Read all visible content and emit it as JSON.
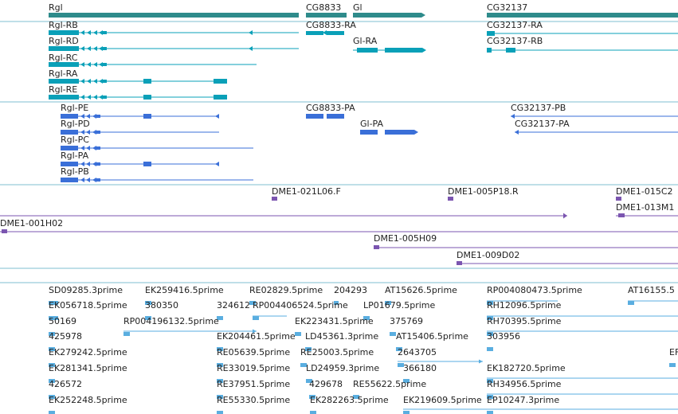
{
  "colors": {
    "gene": "#2e8b8b",
    "transcript": "#0aa0b8",
    "protein": "#3a6fd8",
    "clone": "#7b55b0",
    "est": "#5aaee0",
    "divider": "#7fbfd0"
  },
  "tracks": {
    "genes": [
      {
        "label": "Rgl"
      },
      {
        "label": "CG8833"
      },
      {
        "label": "Gl"
      },
      {
        "label": "CG32137"
      }
    ],
    "transcripts": [
      {
        "label": "Rgl-RB"
      },
      {
        "label": "Rgl-RD"
      },
      {
        "label": "Rgl-RC"
      },
      {
        "label": "Rgl-RA"
      },
      {
        "label": "Rgl-RE"
      },
      {
        "label": "CG8833-RA"
      },
      {
        "label": "Gl-RA"
      },
      {
        "label": "CG32137-RA"
      },
      {
        "label": "CG32137-RB"
      }
    ],
    "proteins": [
      {
        "label": "Rgl-PE"
      },
      {
        "label": "Rgl-PD"
      },
      {
        "label": "Rgl-PC"
      },
      {
        "label": "Rgl-PA"
      },
      {
        "label": "Rgl-PB"
      },
      {
        "label": "CG8833-PA"
      },
      {
        "label": "Gl-PA"
      },
      {
        "label": "CG32137-PB"
      },
      {
        "label": "CG32137-PA"
      }
    ],
    "clones": [
      {
        "label": "DME1-021L06.F"
      },
      {
        "label": "DME1-005P18.R"
      },
      {
        "label": "DME1-015C2"
      },
      {
        "label": "DME1-013M1"
      },
      {
        "label": "DME1-001H02"
      },
      {
        "label": "DME1-005H09"
      },
      {
        "label": "DME1-009D02"
      }
    ],
    "ests": [
      {
        "label": "SD09285.3prime"
      },
      {
        "label": "EK259416.5prime"
      },
      {
        "label": "RE02829.5prime"
      },
      {
        "label": "204293"
      },
      {
        "label": "AT15626.5prime"
      },
      {
        "label": "RP004080473.5prime"
      },
      {
        "label": "AT16155.5"
      },
      {
        "label": "EK056718.5prime"
      },
      {
        "label": "380350"
      },
      {
        "label": "324612"
      },
      {
        "label": "RP004406524.5prime"
      },
      {
        "label": "LP01679.5prime"
      },
      {
        "label": "RH12096.5prime"
      },
      {
        "label": "50169"
      },
      {
        "label": "RP004196132.5prime"
      },
      {
        "label": "EK223431.5prime"
      },
      {
        "label": "375769"
      },
      {
        "label": "RH70395.5prime"
      },
      {
        "label": "425978"
      },
      {
        "label": "EK204461.5prime"
      },
      {
        "label": "LD45361.3prime"
      },
      {
        "label": "AT15406.5prime"
      },
      {
        "label": "303956"
      },
      {
        "label": "EK279242.5prime"
      },
      {
        "label": "RE05639.5prime"
      },
      {
        "label": "RE25003.5prime"
      },
      {
        "label": "2643705"
      },
      {
        "label": "EF"
      },
      {
        "label": "EK281341.5prime"
      },
      {
        "label": "RE33019.5prime"
      },
      {
        "label": "LD24959.3prime"
      },
      {
        "label": "366180"
      },
      {
        "label": "EK182720.5prime"
      },
      {
        "label": "426572"
      },
      {
        "label": "RE37951.5prime"
      },
      {
        "label": "429678"
      },
      {
        "label": "RE55622.5prime"
      },
      {
        "label": "RH34956.5prime"
      },
      {
        "label": "EK252248.5prime"
      },
      {
        "label": "RE55330.5prime"
      },
      {
        "label": "EK282263.5prime"
      },
      {
        "label": "EK219609.5prime"
      },
      {
        "label": "EP10247.3prime"
      }
    ]
  }
}
